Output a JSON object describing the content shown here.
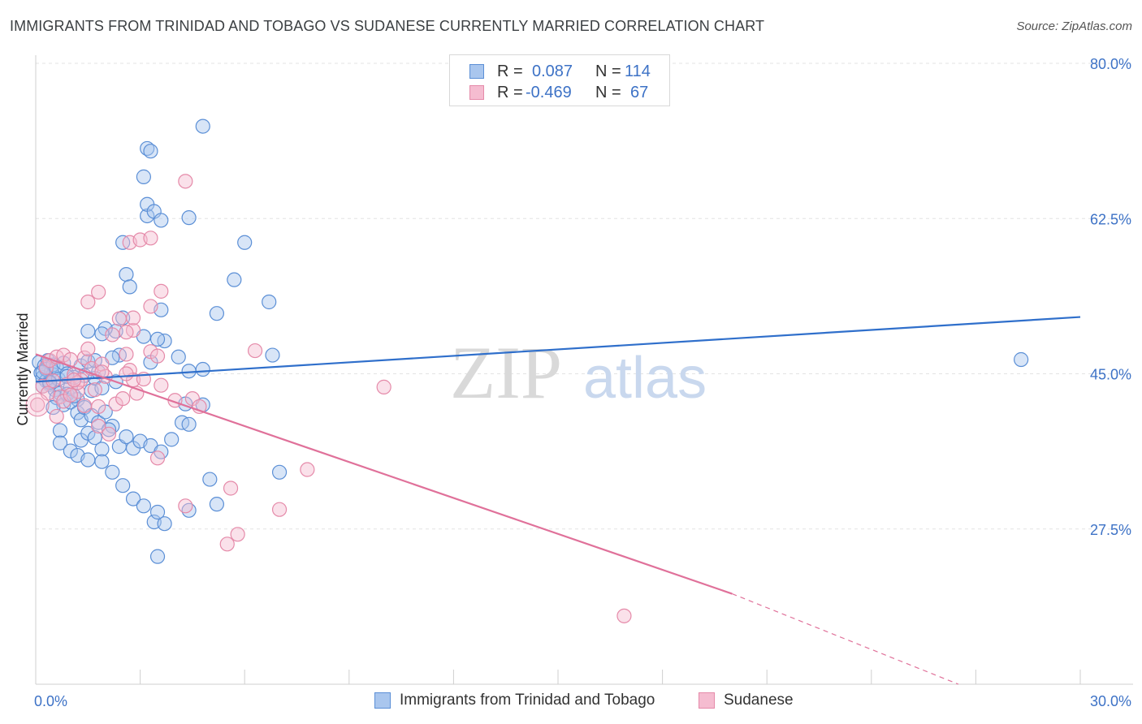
{
  "title": "IMMIGRANTS FROM TRINIDAD AND TOBAGO VS SUDANESE CURRENTLY MARRIED CORRELATION CHART",
  "source": "Source: ZipAtlas.com",
  "watermark": {
    "part1": "ZIP",
    "part2": "atlas"
  },
  "legend": {
    "rows": [
      {
        "r_label": "R =",
        "r_value": "0.087",
        "n_label": "N =",
        "n_value": "114"
      },
      {
        "r_label": "R =",
        "r_value": "-0.469",
        "n_label": "N =",
        "n_value": "67"
      }
    ]
  },
  "colors": {
    "blue_fill": "#a9c6ee",
    "blue_stroke": "#5b8fd6",
    "blue_line": "#2f6fcb",
    "pink_fill": "#f5bcd0",
    "pink_stroke": "#e58aa9",
    "pink_line": "#e0719a",
    "tick_text": "#3d72c6",
    "grid": "#e3e3e3"
  },
  "chart_data": {
    "type": "scatter",
    "title": "IMMIGRANTS FROM TRINIDAD AND TOBAGO VS SUDANESE CURRENTLY MARRIED CORRELATION CHART",
    "ylabel": "Currently Married",
    "xlim": [
      0,
      30
    ],
    "ylim": [
      10,
      80
    ],
    "x_tick_labels": [
      "0.0%",
      "30.0%"
    ],
    "y_ticks": [
      27.5,
      45.0,
      62.5,
      80.0
    ],
    "y_tick_labels": [
      "27.5%",
      "45.0%",
      "62.5%",
      "80.0%"
    ],
    "grid": true,
    "legend_position": "top-center",
    "series": [
      {
        "name": "Immigrants from Trinidad and Tobago",
        "r": 0.087,
        "n": 114,
        "trend": {
          "x": [
            0,
            30
          ],
          "y": [
            44.1,
            51.4
          ]
        },
        "points": [
          [
            0.1,
            46.3
          ],
          [
            0.15,
            45.1
          ],
          [
            0.2,
            44.6
          ],
          [
            0.25,
            45.9
          ],
          [
            0.3,
            44.2
          ],
          [
            0.35,
            46.5
          ],
          [
            0.4,
            43.8
          ],
          [
            0.45,
            45.3
          ],
          [
            0.5,
            44.9
          ],
          [
            0.2,
            43.6
          ],
          [
            0.3,
            45.5
          ],
          [
            0.4,
            44.1
          ],
          [
            0.5,
            46.0
          ],
          [
            0.55,
            43.2
          ],
          [
            0.6,
            45.7
          ],
          [
            0.65,
            44.4
          ],
          [
            0.7,
            42.8
          ],
          [
            0.8,
            46.2
          ],
          [
            0.9,
            45.0
          ],
          [
            1.0,
            43.5
          ],
          [
            1.1,
            44.6
          ],
          [
            1.2,
            42.1
          ],
          [
            1.3,
            45.9
          ],
          [
            1.4,
            44.8
          ],
          [
            1.5,
            46.4
          ],
          [
            1.6,
            43.1
          ],
          [
            1.7,
            44.5
          ],
          [
            1.8,
            45.2
          ],
          [
            0.6,
            42.3
          ],
          [
            0.8,
            41.5
          ],
          [
            0.9,
            42.7
          ],
          [
            1.0,
            41.8
          ],
          [
            1.1,
            42.5
          ],
          [
            1.2,
            40.6
          ],
          [
            1.3,
            39.8
          ],
          [
            1.4,
            41.2
          ],
          [
            1.6,
            40.3
          ],
          [
            1.8,
            39.5
          ],
          [
            2.0,
            40.7
          ],
          [
            2.2,
            39.1
          ],
          [
            0.7,
            38.6
          ],
          [
            0.7,
            37.2
          ],
          [
            1.0,
            36.3
          ],
          [
            1.3,
            37.5
          ],
          [
            1.5,
            38.3
          ],
          [
            1.7,
            37.8
          ],
          [
            1.9,
            36.5
          ],
          [
            2.1,
            38.7
          ],
          [
            1.2,
            35.8
          ],
          [
            1.5,
            35.3
          ],
          [
            1.9,
            35.1
          ],
          [
            2.2,
            33.9
          ],
          [
            2.5,
            32.4
          ],
          [
            2.4,
            36.8
          ],
          [
            2.6,
            37.9
          ],
          [
            2.8,
            36.6
          ],
          [
            3.0,
            37.4
          ],
          [
            3.3,
            36.9
          ],
          [
            3.6,
            36.2
          ],
          [
            3.9,
            37.6
          ],
          [
            2.8,
            30.9
          ],
          [
            3.1,
            30.1
          ],
          [
            3.4,
            28.3
          ],
          [
            3.7,
            28.1
          ],
          [
            3.5,
            29.4
          ],
          [
            3.5,
            24.4
          ],
          [
            4.4,
            29.6
          ],
          [
            5.2,
            30.3
          ],
          [
            5.0,
            33.1
          ],
          [
            7.0,
            33.9
          ],
          [
            4.2,
            39.5
          ],
          [
            4.4,
            39.3
          ],
          [
            4.3,
            41.6
          ],
          [
            4.8,
            41.5
          ],
          [
            3.7,
            48.7
          ],
          [
            3.3,
            46.3
          ],
          [
            4.4,
            45.3
          ],
          [
            4.8,
            45.5
          ],
          [
            4.1,
            46.9
          ],
          [
            3.5,
            48.9
          ],
          [
            3.1,
            49.2
          ],
          [
            2.4,
            47.1
          ],
          [
            2.3,
            49.8
          ],
          [
            2.0,
            50.1
          ],
          [
            1.9,
            49.5
          ],
          [
            1.5,
            49.8
          ],
          [
            1.7,
            46.5
          ],
          [
            2.2,
            46.8
          ],
          [
            2.5,
            51.3
          ],
          [
            3.6,
            52.2
          ],
          [
            5.2,
            51.8
          ],
          [
            6.7,
            53.1
          ],
          [
            6.8,
            47.1
          ],
          [
            2.6,
            56.2
          ],
          [
            2.7,
            54.8
          ],
          [
            2.5,
            59.8
          ],
          [
            5.7,
            55.6
          ],
          [
            6.0,
            59.8
          ],
          [
            3.2,
            62.8
          ],
          [
            3.2,
            64.1
          ],
          [
            3.4,
            63.3
          ],
          [
            3.6,
            62.3
          ],
          [
            4.4,
            62.6
          ],
          [
            3.1,
            67.2
          ],
          [
            3.2,
            70.4
          ],
          [
            3.3,
            70.1
          ],
          [
            4.8,
            72.9
          ],
          [
            28.3,
            46.6
          ],
          [
            0.5,
            41.2
          ],
          [
            1.9,
            43.4
          ],
          [
            2.3,
            44.1
          ],
          [
            0.4,
            44.0
          ],
          [
            0.2,
            45.2
          ],
          [
            0.9,
            44.7
          ]
        ]
      },
      {
        "name": "Sudanese",
        "r": -0.469,
        "n": 67,
        "trend": {
          "x": [
            0,
            20
          ],
          "y": [
            47.2,
            20.2
          ]
        },
        "trend_dashed": {
          "x": [
            20,
            26.5
          ],
          "y": [
            20.2,
            10.0
          ]
        },
        "points": [
          [
            0.05,
            41.5
          ],
          [
            0.2,
            43.6
          ],
          [
            0.3,
            45.7
          ],
          [
            0.4,
            46.5
          ],
          [
            0.5,
            44.2
          ],
          [
            0.6,
            46.9
          ],
          [
            0.7,
            42.4
          ],
          [
            0.8,
            47.1
          ],
          [
            0.9,
            43.8
          ],
          [
            1.0,
            46.6
          ],
          [
            1.1,
            44.9
          ],
          [
            1.2,
            43.0
          ],
          [
            1.3,
            44.3
          ],
          [
            1.4,
            46.8
          ],
          [
            1.5,
            47.8
          ],
          [
            1.6,
            45.6
          ],
          [
            1.7,
            43.2
          ],
          [
            1.8,
            41.3
          ],
          [
            1.9,
            46.1
          ],
          [
            2.0,
            44.7
          ],
          [
            0.6,
            40.2
          ],
          [
            0.8,
            41.9
          ],
          [
            1.0,
            42.6
          ],
          [
            1.2,
            44.0
          ],
          [
            1.4,
            41.4
          ],
          [
            1.8,
            39.1
          ],
          [
            2.1,
            38.2
          ],
          [
            2.3,
            41.6
          ],
          [
            2.5,
            42.2
          ],
          [
            2.6,
            47.2
          ],
          [
            2.7,
            45.4
          ],
          [
            2.8,
            44.3
          ],
          [
            2.9,
            42.8
          ],
          [
            3.1,
            44.4
          ],
          [
            3.3,
            47.5
          ],
          [
            3.5,
            47.0
          ],
          [
            3.6,
            43.7
          ],
          [
            2.8,
            49.9
          ],
          [
            2.6,
            49.7
          ],
          [
            2.2,
            49.4
          ],
          [
            2.4,
            51.2
          ],
          [
            2.8,
            51.3
          ],
          [
            3.3,
            52.6
          ],
          [
            3.6,
            54.3
          ],
          [
            1.5,
            53.1
          ],
          [
            1.8,
            54.2
          ],
          [
            2.7,
            59.8
          ],
          [
            3.0,
            60.1
          ],
          [
            3.3,
            60.3
          ],
          [
            4.3,
            66.7
          ],
          [
            4.5,
            42.2
          ],
          [
            4.7,
            41.3
          ],
          [
            5.6,
            32.1
          ],
          [
            5.8,
            26.9
          ],
          [
            5.5,
            25.8
          ],
          [
            7.0,
            29.7
          ],
          [
            4.3,
            30.1
          ],
          [
            3.5,
            35.5
          ],
          [
            7.8,
            34.2
          ],
          [
            6.3,
            47.6
          ],
          [
            10.0,
            43.5
          ],
          [
            16.9,
            17.7
          ],
          [
            4.0,
            42.0
          ],
          [
            1.9,
            45.2
          ],
          [
            1.1,
            44.3
          ],
          [
            2.6,
            45.0
          ],
          [
            0.35,
            42.8
          ]
        ]
      }
    ]
  }
}
